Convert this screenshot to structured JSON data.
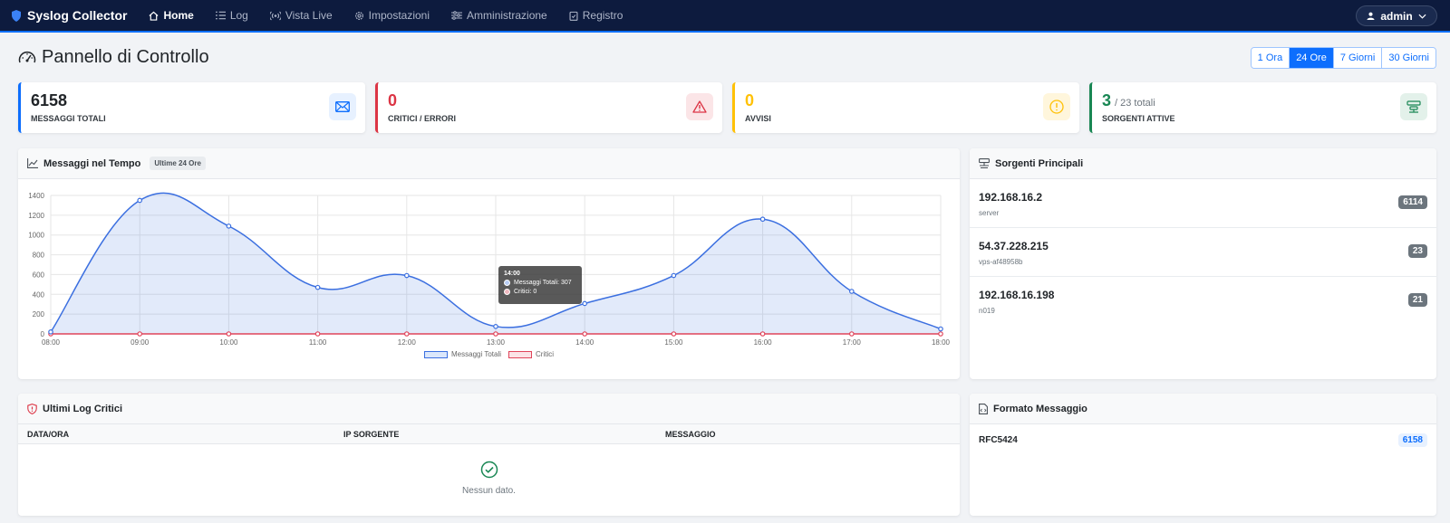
{
  "nav": {
    "brand": "Syslog Collector",
    "items": [
      {
        "label": "Home",
        "icon": "house-icon"
      },
      {
        "label": "Log",
        "icon": "list-icon"
      },
      {
        "label": "Vista Live",
        "icon": "broadcast-icon"
      },
      {
        "label": "Impostazioni",
        "icon": "gear-icon"
      },
      {
        "label": "Amministrazione",
        "icon": "sliders-icon"
      },
      {
        "label": "Registro",
        "icon": "clipboard-icon"
      }
    ],
    "user": "admin"
  },
  "page": {
    "title": "Pannello di Controllo",
    "ranges": [
      "1 Ora",
      "24 Ore",
      "7 Giorni",
      "30 Giorni"
    ],
    "active_range": "24 Ore"
  },
  "stats": [
    {
      "value": "6158",
      "label": "MESSAGGI TOTALI",
      "color": "#0d6efd",
      "icon": "envelope-icon"
    },
    {
      "value": "0",
      "label": "CRITICI / ERRORI",
      "color": "#dc3545",
      "icon": "warning-icon"
    },
    {
      "value": "0",
      "label": "AVVISI",
      "color": "#ffc107",
      "icon": "exclamation-icon"
    },
    {
      "value": "3",
      "sub": "/ 23 totali",
      "label": "SORGENTI ATTIVE",
      "color": "#198754",
      "icon": "server-icon"
    }
  ],
  "chart_panel": {
    "title": "Messaggi nel Tempo",
    "badge": "Ultime 24 Ore"
  },
  "chart_data": {
    "type": "line",
    "x": [
      "08:00",
      "09:00",
      "10:00",
      "11:00",
      "12:00",
      "13:00",
      "14:00",
      "15:00",
      "16:00",
      "17:00",
      "18:00"
    ],
    "series": [
      {
        "name": "Messaggi Totali",
        "values": [
          20,
          1350,
          1090,
          470,
          590,
          75,
          307,
          590,
          1160,
          430,
          50
        ],
        "color": "#3b6fe0"
      },
      {
        "name": "Critici",
        "values": [
          0,
          0,
          0,
          0,
          0,
          0,
          0,
          0,
          0,
          0,
          0
        ],
        "color": "#e0445a"
      }
    ],
    "yticks": [
      0,
      200,
      400,
      600,
      800,
      1000,
      1200,
      1400
    ],
    "ylim": [
      0,
      1400
    ],
    "grid": true,
    "legend": "bottom",
    "tooltip": {
      "title": "14:00",
      "line1": "Messaggi Totali: 307",
      "line2": "Critici: 0"
    }
  },
  "sources_panel": {
    "title": "Sorgenti Principali",
    "items": [
      {
        "ip": "192.168.16.2",
        "host": "server",
        "count": "6114"
      },
      {
        "ip": "54.37.228.215",
        "host": "vps-af48958b",
        "count": "23"
      },
      {
        "ip": "192.168.16.198",
        "host": "n019",
        "count": "21"
      }
    ]
  },
  "critical_panel": {
    "title": "Ultimi Log Critici",
    "columns": [
      "DATA/ORA",
      "IP SORGENTE",
      "MESSAGGIO"
    ],
    "empty_text": "Nessun dato."
  },
  "format_panel": {
    "title": "Formato Messaggio",
    "format": "RFC5424",
    "count": "6158"
  }
}
